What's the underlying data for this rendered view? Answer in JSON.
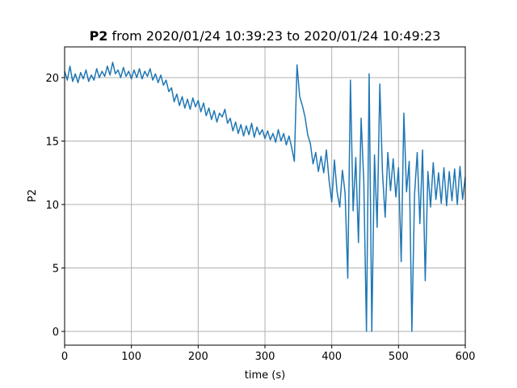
{
  "chart_data": {
    "type": "line",
    "title_bold": "P2",
    "title": "from 2020/01/24 10:39:23 to 2020/01/24 10:49:23",
    "xlabel": "time (s)",
    "ylabel": "P2",
    "color": "#1f77b4",
    "grid": true,
    "xlim": [
      0,
      600
    ],
    "ylim": [
      -1.08,
      22.42
    ],
    "xticks": [
      0,
      100,
      200,
      300,
      400,
      500,
      600
    ],
    "yticks": [
      0,
      5,
      10,
      15,
      20
    ],
    "x": [
      0,
      4,
      8,
      12,
      16,
      20,
      24,
      28,
      32,
      36,
      40,
      44,
      48,
      52,
      56,
      60,
      64,
      68,
      72,
      76,
      80,
      84,
      88,
      92,
      96,
      100,
      104,
      108,
      112,
      116,
      120,
      124,
      128,
      132,
      136,
      140,
      144,
      148,
      152,
      156,
      160,
      164,
      168,
      172,
      176,
      180,
      184,
      188,
      192,
      196,
      200,
      204,
      208,
      212,
      216,
      220,
      224,
      228,
      232,
      236,
      240,
      244,
      248,
      252,
      256,
      260,
      264,
      268,
      272,
      276,
      280,
      284,
      288,
      292,
      296,
      300,
      304,
      308,
      312,
      316,
      320,
      324,
      328,
      332,
      336,
      340,
      344,
      348,
      352,
      356,
      360,
      364,
      368,
      372,
      376,
      380,
      384,
      388,
      392,
      396,
      400,
      404,
      408,
      412,
      416,
      420,
      424,
      428,
      432,
      436,
      440,
      444,
      448,
      452,
      456,
      460,
      464,
      468,
      472,
      476,
      480,
      484,
      488,
      492,
      496,
      500,
      504,
      508,
      512,
      516,
      520,
      524,
      528,
      532,
      536,
      540,
      544,
      548,
      552,
      556,
      560,
      564,
      568,
      572,
      576,
      580,
      584,
      588,
      592,
      596,
      600
    ],
    "values": [
      20.5,
      19.8,
      20.9,
      19.7,
      20.3,
      19.6,
      20.4,
      19.9,
      20.6,
      19.7,
      20.2,
      19.8,
      20.7,
      20.0,
      20.5,
      20.1,
      20.9,
      20.2,
      21.2,
      20.3,
      20.6,
      20.0,
      20.8,
      20.1,
      20.5,
      19.9,
      20.6,
      20.0,
      20.7,
      19.9,
      20.5,
      20.1,
      20.7,
      19.8,
      20.3,
      19.6,
      20.2,
      19.4,
      19.8,
      18.9,
      19.2,
      18.1,
      18.7,
      17.8,
      18.5,
      17.6,
      18.3,
      17.5,
      18.4,
      17.7,
      18.2,
      17.3,
      18.0,
      17.0,
      17.6,
      16.7,
      17.4,
      16.5,
      17.2,
      16.9,
      17.5,
      16.4,
      16.8,
      15.8,
      16.5,
      15.6,
      16.3,
      15.4,
      16.2,
      15.5,
      16.4,
      15.3,
      16.1,
      15.5,
      15.9,
      15.2,
      15.8,
      15.1,
      15.6,
      14.9,
      15.9,
      15.0,
      15.6,
      14.7,
      15.4,
      14.5,
      13.4,
      21.0,
      18.5,
      17.8,
      16.9,
      15.5,
      14.8,
      13.2,
      14.1,
      12.6,
      13.8,
      12.5,
      14.3,
      11.9,
      10.2,
      13.5,
      11.0,
      9.8,
      12.7,
      10.9,
      4.2,
      19.8,
      9.5,
      13.7,
      7.0,
      16.8,
      11.8,
      0.0,
      20.3,
      0.0,
      13.9,
      8.2,
      19.5,
      12.5,
      9.0,
      14.1,
      11.1,
      13.6,
      10.6,
      12.9,
      5.5,
      17.2,
      11.0,
      13.4,
      0.0,
      10.8,
      14.1,
      8.5,
      14.3,
      4.0,
      12.6,
      9.8,
      13.3,
      10.4,
      12.5,
      10.1,
      12.9,
      9.9,
      12.6,
      10.3,
      12.8,
      10.0,
      13.0,
      10.4,
      12.2
    ]
  }
}
